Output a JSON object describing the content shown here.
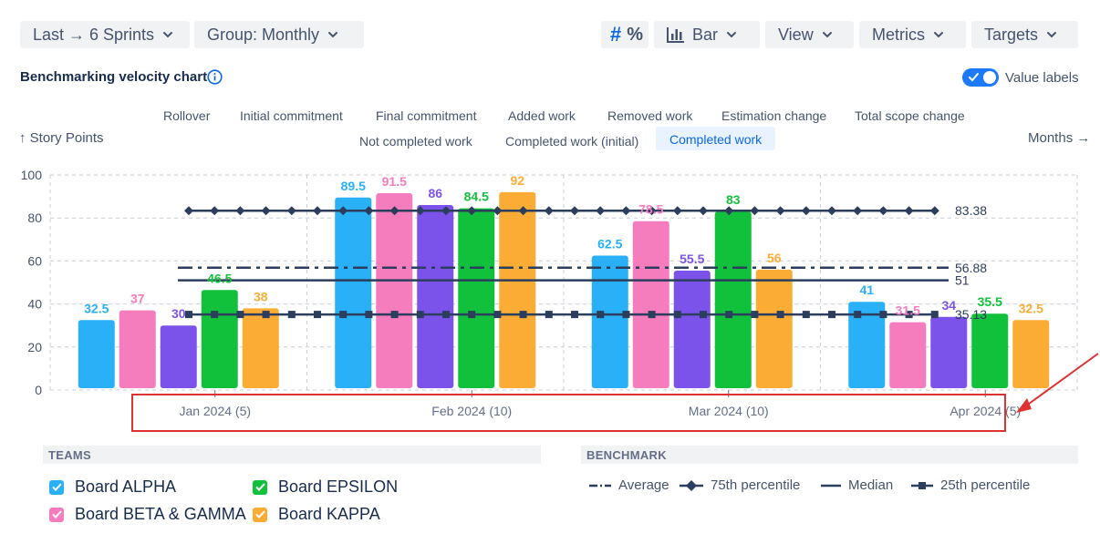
{
  "toolbar": {
    "range_label": "Last → 6 Sprints",
    "group_label": "Group: Monthly",
    "hash_symbol": "#",
    "percent_symbol": "%",
    "chart_type_label": "Bar",
    "view_label": "View",
    "metrics_label": "Metrics",
    "targets_label": "Targets"
  },
  "header": {
    "title": "Benchmarking velocity chart",
    "value_labels_toggle": "Value labels",
    "value_labels_on": true
  },
  "metrics": {
    "row1": [
      "Rollover",
      "Initial commitment",
      "Final commitment",
      "Added work",
      "Removed work",
      "Estimation change",
      "Total scope change"
    ],
    "row2": [
      "Not completed work",
      "Completed work (initial)",
      "Completed work"
    ],
    "active": "Completed work"
  },
  "axis_labels": {
    "y": "↑ Story Points",
    "x": "Months →"
  },
  "colors": {
    "alpha": "#29b0f7",
    "beta_gamma": "#f57cbd",
    "purple": "#7c53ea",
    "epsilon": "#12c13b",
    "kappa": "#fbac34",
    "benchmark": "#2c3e5d",
    "accent": "#1d7afc"
  },
  "chart_data": {
    "type": "bar",
    "ylabel": "Story Points",
    "xlabel": "Months",
    "ylim": [
      0,
      100
    ],
    "yticks": [
      0,
      20,
      40,
      60,
      80,
      100
    ],
    "grid": true,
    "categories": [
      "Jan 2024 (5)",
      "Feb 2024 (10)",
      "Mar 2024 (10)",
      "Apr 2024 (5)"
    ],
    "series": [
      {
        "name": "Board ALPHA",
        "color": "#29b0f7",
        "values": [
          32.5,
          89.5,
          62.5,
          41
        ]
      },
      {
        "name": "Board BETA & GAMMA",
        "color": "#f57cbd",
        "values": [
          37,
          91.5,
          78.5,
          31.5
        ]
      },
      {
        "color": "#7c53ea",
        "values": [
          30,
          86,
          55.5,
          34
        ]
      },
      {
        "name": "Board EPSILON",
        "color": "#12c13b",
        "values": [
          46.5,
          84.5,
          83,
          35.5
        ]
      },
      {
        "name": "Board KAPPA",
        "color": "#fbac34",
        "values": [
          38,
          92,
          56,
          32.5
        ]
      }
    ],
    "value_labels": [
      [
        "32.5",
        "37",
        "30",
        "46.5",
        "38"
      ],
      [
        "89.5",
        "91.5",
        "86",
        "84.5",
        "92"
      ],
      [
        "62.5",
        "78.5",
        "55.5",
        "83",
        "56"
      ],
      [
        "41",
        "31.5",
        "34",
        "35.5",
        "32.5"
      ]
    ],
    "benchmarks": [
      {
        "name": "75th percentile",
        "value": 83.38,
        "label": "83.38",
        "style": "diamond"
      },
      {
        "name": "Average",
        "value": 56.88,
        "label": "56.88",
        "style": "dashdot"
      },
      {
        "name": "Median",
        "value": 51,
        "label": "51",
        "style": "solid"
      },
      {
        "name": "25th percentile",
        "value": 35.13,
        "label": "35.13",
        "style": "square"
      }
    ]
  },
  "legend": {
    "teams_title": "TEAMS",
    "benchmark_title": "BENCHMARK",
    "teams": [
      {
        "label": "Board ALPHA",
        "color": "#29b0f7"
      },
      {
        "label": "Board EPSILON",
        "color": "#12c13b"
      },
      {
        "label": "Board BETA & GAMMA",
        "color": "#f57cbd"
      },
      {
        "label": "Board KAPPA",
        "color": "#fbac34"
      }
    ],
    "benchmarks": [
      "Average",
      "75th percentile",
      "Median",
      "25th percentile"
    ]
  },
  "annotation": {
    "highlight_color": "#e03131"
  }
}
